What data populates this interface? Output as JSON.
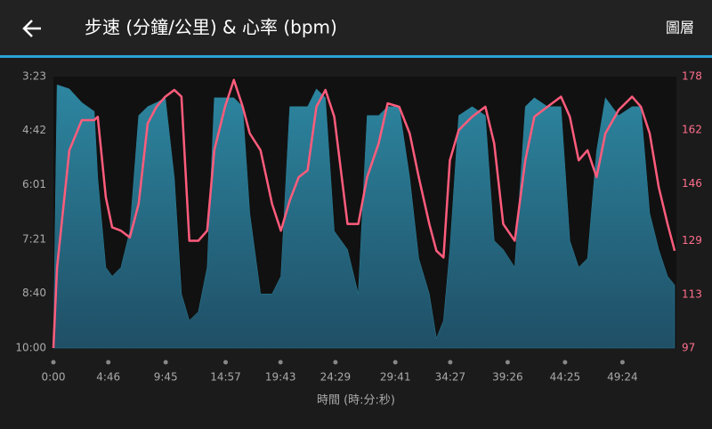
{
  "header": {
    "title": "步速 (分鐘/公里) & 心率 (bpm)",
    "action": "圖層"
  },
  "chart_data": {
    "type": "area-line",
    "x_label": "時間 (時:分:秒)",
    "x": [
      0,
      19,
      83,
      148,
      213,
      231,
      273,
      306,
      352,
      398,
      444,
      491,
      537,
      583,
      630,
      667,
      708,
      755,
      801,
      838,
      894,
      940,
      986,
      1023,
      1079,
      1139,
      1185,
      1231,
      1278,
      1324,
      1370,
      1417,
      1463,
      1532,
      1588,
      1634,
      1694,
      1741,
      1801,
      1856,
      1903,
      1958,
      1995,
      2032,
      2065,
      2111,
      2181,
      2250,
      2296,
      2343,
      2403,
      2458,
      2505,
      2574,
      2644,
      2690,
      2736,
      2782,
      2829,
      2875,
      2944,
      3014,
      3060,
      3106,
      3153,
      3199,
      3236
    ],
    "series": [
      {
        "type": "area",
        "axis": "y",
        "color": "#2b7f98",
        "values": [
          600,
          215,
          221,
          241,
          254,
          351,
          482,
          495,
          482,
          429,
          260,
          247,
          241,
          234,
          351,
          521,
          560,
          547,
          482,
          234,
          234,
          234,
          247,
          403,
          521,
          521,
          495,
          247,
          247,
          247,
          221,
          234,
          429,
          456,
          521,
          260,
          260,
          247,
          247,
          351,
          469,
          521,
          586,
          560,
          456,
          260,
          247,
          260,
          443,
          456,
          482,
          247,
          234,
          247,
          247,
          443,
          482,
          469,
          312,
          234,
          260,
          247,
          247,
          403,
          456,
          495,
          508
        ]
      },
      {
        "type": "line",
        "axis": "y2",
        "color": "#ff5c7c",
        "values": [
          97,
          121,
          156,
          165,
          165,
          166,
          142,
          133,
          132,
          130,
          140,
          164,
          169,
          172,
          174,
          172,
          129,
          129,
          132,
          156,
          169,
          177,
          169,
          161,
          156,
          140,
          132,
          141,
          148,
          150,
          169,
          174,
          166,
          134,
          134,
          148,
          158,
          170,
          169,
          161,
          148,
          134,
          126,
          124,
          153,
          162,
          166,
          169,
          158,
          134,
          129,
          153,
          166,
          169,
          172,
          166,
          153,
          156,
          148,
          161,
          168,
          172,
          169,
          161,
          145,
          134,
          126
        ]
      }
    ],
    "xlim": [
      0,
      3245
    ],
    "xticks": [
      {
        "value": 0,
        "label": "0:00"
      },
      {
        "value": 286,
        "label": "4:46"
      },
      {
        "value": 585,
        "label": "9:45"
      },
      {
        "value": 897,
        "label": "14:57"
      },
      {
        "value": 1183,
        "label": "19:43"
      },
      {
        "value": 1469,
        "label": "24:29"
      },
      {
        "value": 1781,
        "label": "29:41"
      },
      {
        "value": 2067,
        "label": "34:27"
      },
      {
        "value": 2366,
        "label": "39:26"
      },
      {
        "value": 2665,
        "label": "44:25"
      },
      {
        "value": 2964,
        "label": "49:24"
      }
    ],
    "ylim": [
      600,
      203
    ],
    "yticks": [
      {
        "value": 203,
        "label": "3:23"
      },
      {
        "value": 282,
        "label": "4:42"
      },
      {
        "value": 361,
        "label": "6:01"
      },
      {
        "value": 441,
        "label": "7:21"
      },
      {
        "value": 520,
        "label": "8:40"
      },
      {
        "value": 600,
        "label": "10:00"
      }
    ],
    "y2lim": [
      97,
      178
    ],
    "y2ticks": [
      97,
      113,
      129,
      146,
      162,
      178
    ]
  }
}
